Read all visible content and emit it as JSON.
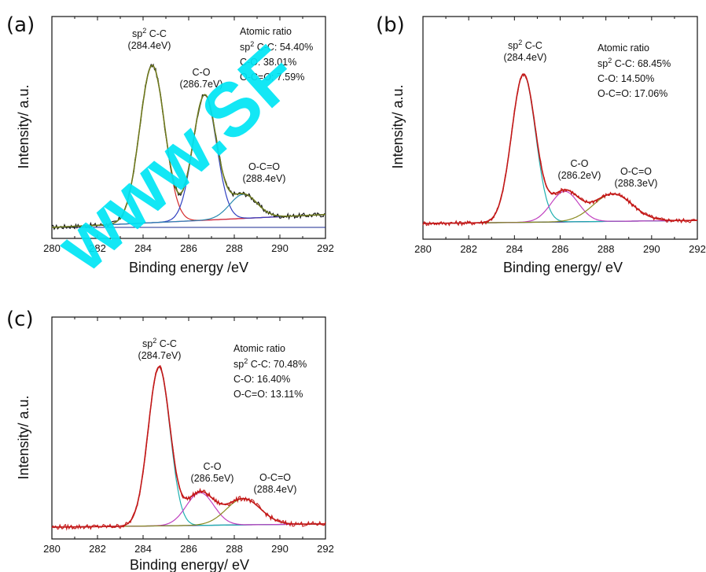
{
  "watermark": "www.SF",
  "chart_data": [
    {
      "type": "line",
      "panel_label": "(a)",
      "xlabel": "Binding energy /eV",
      "ylabel": "Intensity/ a.u.",
      "xlim": [
        280,
        292
      ],
      "x_ticks": [
        "280",
        "282",
        "284",
        "286",
        "288",
        "290",
        "292"
      ],
      "peaks": [
        {
          "name": "sp2 C-C",
          "center": 284.4,
          "height": 0.98,
          "width": 0.55,
          "color": "#d42a2a"
        },
        {
          "name": "C-O",
          "center": 286.7,
          "height": 0.78,
          "width": 0.52,
          "color": "#3040c0"
        },
        {
          "name": "O-C=O",
          "center": 288.4,
          "height": 0.15,
          "width": 0.6,
          "color": "#2a8ab0"
        }
      ],
      "envelope_color": "#6e7a1e",
      "labels": [
        {
          "main": "sp",
          "sup": "2",
          "rest": " C-C",
          "sub": "(284.4eV)"
        },
        {
          "main": "C-O",
          "sub": "(286.7eV)"
        },
        {
          "main": "O-C=O",
          "sub": "(288.4eV)"
        }
      ],
      "ratio": {
        "title": "Atomic ratio",
        "lines": [
          {
            "pre": "sp",
            "sup": "2",
            "post": " C-C: 54.40%"
          },
          {
            "pre": "C-O: 38.01%"
          },
          {
            "pre": "O-C=O: 7.59%"
          }
        ]
      }
    },
    {
      "type": "line",
      "panel_label": "(b)",
      "xlabel": "Binding energy/ eV",
      "ylabel": "Intensity/ a.u.",
      "xlim": [
        280,
        292
      ],
      "x_ticks": [
        "280",
        "282",
        "284",
        "286",
        "288",
        "290",
        "292"
      ],
      "peaks": [
        {
          "name": "sp2 C-C",
          "center": 284.4,
          "height": 0.97,
          "width": 0.52,
          "color": "#1fb0b0"
        },
        {
          "name": "C-O",
          "center": 286.2,
          "height": 0.2,
          "width": 0.6,
          "color": "#c040c0"
        },
        {
          "name": "O-C=O",
          "center": 288.3,
          "height": 0.18,
          "width": 0.85,
          "color": "#8a8a20"
        }
      ],
      "envelope_color": "#c41818",
      "labels": [
        {
          "main": "sp",
          "sup": "2",
          "rest": " C-C",
          "sub": "(284.4eV)"
        },
        {
          "main": "C-O",
          "sub": "(286.2eV)"
        },
        {
          "main": "O-C=O",
          "sub": "(288.3eV)"
        }
      ],
      "ratio": {
        "title": "Atomic ratio",
        "lines": [
          {
            "pre": "sp",
            "sup": "2",
            "post": " C-C: 68.45%"
          },
          {
            "pre": "C-O: 14.50%"
          },
          {
            "pre": "O-C=O: 17.06%"
          }
        ]
      }
    },
    {
      "type": "line",
      "panel_label": "(c)",
      "xlabel": "Binding energy/ eV",
      "ylabel": "Intensity/ a.u.",
      "xlim": [
        280,
        292
      ],
      "x_ticks": [
        "280",
        "282",
        "284",
        "286",
        "288",
        "290",
        "292"
      ],
      "peaks": [
        {
          "name": "sp2 C-C",
          "center": 284.7,
          "height": 0.97,
          "width": 0.48,
          "color": "#1fb0b0"
        },
        {
          "name": "C-O",
          "center": 286.5,
          "height": 0.2,
          "width": 0.6,
          "color": "#c040c0"
        },
        {
          "name": "O-C=O",
          "center": 288.4,
          "height": 0.16,
          "width": 0.75,
          "color": "#8a8a20"
        }
      ],
      "envelope_color": "#c41818",
      "labels": [
        {
          "main": "sp",
          "sup": "2",
          "rest": " C-C",
          "sub": "(284.7eV)"
        },
        {
          "main": "C-O",
          "sub": "(286.5eV)"
        },
        {
          "main": "O-C=O",
          "sub": "(288.4eV)"
        }
      ],
      "ratio": {
        "title": "Atomic ratio",
        "lines": [
          {
            "pre": "sp",
            "sup": "2",
            "post": " C-C: 70.48%"
          },
          {
            "pre": "C-O: 16.40%"
          },
          {
            "pre": "O-C=O: 13.11%"
          }
        ]
      }
    }
  ]
}
